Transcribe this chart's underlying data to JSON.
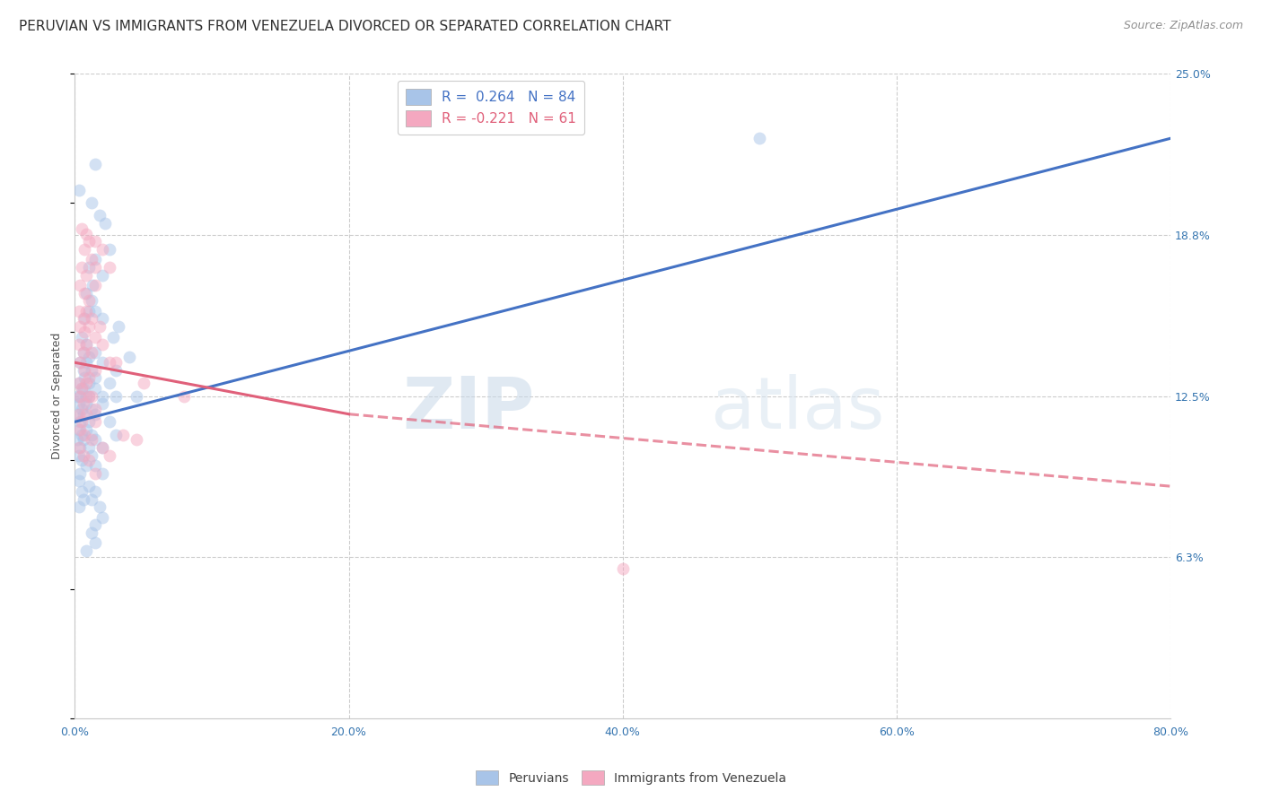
{
  "title": "PERUVIAN VS IMMIGRANTS FROM VENEZUELA DIVORCED OR SEPARATED CORRELATION CHART",
  "source": "Source: ZipAtlas.com",
  "ylabel_label": "Divorced or Separated",
  "blue_line_color": "#4472c4",
  "pink_line_color": "#e0607a",
  "blue_scatter_color": "#a8c4e8",
  "pink_scatter_color": "#f4a8c0",
  "background_color": "#ffffff",
  "grid_color": "#cccccc",
  "watermark_color": "#d5e4f0",
  "title_fontsize": 11,
  "axis_label_fontsize": 9,
  "tick_fontsize": 9,
  "legend_fontsize": 11,
  "source_fontsize": 9,
  "xlim": [
    0,
    80
  ],
  "ylim": [
    0,
    25
  ],
  "xtick_positions": [
    0,
    20,
    40,
    60,
    80
  ],
  "xtick_labels": [
    "0.0%",
    "20.0%",
    "40.0%",
    "60.0%",
    "80.0%"
  ],
  "ytick_positions": [
    6.25,
    12.5,
    18.75,
    25.0
  ],
  "ytick_labels": [
    "6.3%",
    "12.5%",
    "18.8%",
    "25.0%"
  ],
  "scatter_size": 100,
  "scatter_alpha": 0.5,
  "line_width": 2.2,
  "blue_line": [
    0,
    80,
    11.5,
    22.5
  ],
  "pink_line_solid": [
    0,
    20,
    13.8,
    11.8
  ],
  "pink_line_dashed": [
    20,
    80,
    11.8,
    9.0
  ],
  "blue_scatter": [
    [
      0.3,
      20.5
    ],
    [
      1.5,
      21.5
    ],
    [
      1.2,
      20.0
    ],
    [
      1.8,
      19.5
    ],
    [
      2.2,
      19.2
    ],
    [
      1.0,
      17.5
    ],
    [
      1.5,
      17.8
    ],
    [
      0.8,
      16.5
    ],
    [
      1.3,
      16.8
    ],
    [
      2.0,
      17.2
    ],
    [
      2.5,
      18.2
    ],
    [
      1.0,
      15.8
    ],
    [
      0.7,
      15.5
    ],
    [
      1.2,
      16.2
    ],
    [
      1.5,
      15.8
    ],
    [
      0.5,
      14.8
    ],
    [
      0.8,
      14.5
    ],
    [
      2.0,
      15.5
    ],
    [
      2.8,
      14.8
    ],
    [
      3.2,
      15.2
    ],
    [
      0.6,
      14.2
    ],
    [
      1.0,
      14.0
    ],
    [
      1.5,
      14.2
    ],
    [
      0.4,
      13.8
    ],
    [
      0.6,
      13.5
    ],
    [
      0.8,
      13.8
    ],
    [
      1.2,
      13.5
    ],
    [
      2.0,
      13.8
    ],
    [
      3.0,
      13.5
    ],
    [
      4.0,
      14.0
    ],
    [
      0.3,
      13.0
    ],
    [
      0.5,
      12.8
    ],
    [
      0.7,
      13.2
    ],
    [
      1.0,
      13.0
    ],
    [
      1.5,
      13.2
    ],
    [
      2.5,
      13.0
    ],
    [
      0.2,
      12.5
    ],
    [
      0.4,
      12.5
    ],
    [
      0.6,
      12.8
    ],
    [
      0.8,
      12.5
    ],
    [
      1.0,
      12.5
    ],
    [
      1.5,
      12.8
    ],
    [
      2.0,
      12.5
    ],
    [
      3.0,
      12.5
    ],
    [
      4.5,
      12.5
    ],
    [
      0.3,
      12.2
    ],
    [
      0.5,
      12.0
    ],
    [
      0.8,
      12.2
    ],
    [
      1.2,
      12.0
    ],
    [
      2.0,
      12.2
    ],
    [
      0.2,
      11.8
    ],
    [
      0.4,
      11.5
    ],
    [
      0.6,
      11.8
    ],
    [
      1.0,
      11.5
    ],
    [
      1.5,
      11.8
    ],
    [
      0.3,
      11.2
    ],
    [
      0.5,
      11.0
    ],
    [
      0.8,
      11.2
    ],
    [
      1.2,
      11.0
    ],
    [
      2.5,
      11.5
    ],
    [
      0.2,
      10.8
    ],
    [
      0.4,
      10.5
    ],
    [
      0.6,
      10.8
    ],
    [
      1.0,
      10.5
    ],
    [
      1.5,
      10.8
    ],
    [
      2.0,
      10.5
    ],
    [
      3.0,
      11.0
    ],
    [
      0.3,
      10.2
    ],
    [
      0.5,
      10.0
    ],
    [
      1.2,
      10.2
    ],
    [
      0.4,
      9.5
    ],
    [
      0.8,
      9.8
    ],
    [
      1.5,
      9.8
    ],
    [
      2.0,
      9.5
    ],
    [
      0.3,
      9.2
    ],
    [
      0.5,
      8.8
    ],
    [
      1.0,
      9.0
    ],
    [
      1.5,
      8.8
    ],
    [
      0.3,
      8.2
    ],
    [
      0.6,
      8.5
    ],
    [
      1.2,
      8.5
    ],
    [
      1.8,
      8.2
    ],
    [
      50.0,
      22.5
    ],
    [
      1.5,
      7.5
    ],
    [
      2.0,
      7.8
    ],
    [
      1.2,
      7.2
    ],
    [
      0.8,
      6.5
    ],
    [
      1.5,
      6.8
    ]
  ],
  "pink_scatter": [
    [
      0.5,
      19.0
    ],
    [
      0.8,
      18.8
    ],
    [
      1.0,
      18.5
    ],
    [
      1.5,
      18.5
    ],
    [
      0.7,
      18.2
    ],
    [
      1.2,
      17.8
    ],
    [
      0.5,
      17.5
    ],
    [
      0.8,
      17.2
    ],
    [
      1.5,
      17.5
    ],
    [
      2.0,
      18.2
    ],
    [
      0.4,
      16.8
    ],
    [
      0.7,
      16.5
    ],
    [
      1.0,
      16.2
    ],
    [
      1.5,
      16.8
    ],
    [
      2.5,
      17.5
    ],
    [
      0.3,
      15.8
    ],
    [
      0.6,
      15.5
    ],
    [
      0.8,
      15.8
    ],
    [
      1.2,
      15.5
    ],
    [
      1.8,
      15.2
    ],
    [
      0.4,
      15.2
    ],
    [
      0.7,
      15.0
    ],
    [
      1.0,
      15.2
    ],
    [
      1.5,
      14.8
    ],
    [
      2.0,
      14.5
    ],
    [
      0.3,
      14.5
    ],
    [
      0.6,
      14.2
    ],
    [
      0.8,
      14.5
    ],
    [
      1.2,
      14.2
    ],
    [
      2.5,
      13.8
    ],
    [
      0.4,
      13.8
    ],
    [
      0.7,
      13.5
    ],
    [
      1.0,
      13.2
    ],
    [
      1.5,
      13.5
    ],
    [
      3.0,
      13.8
    ],
    [
      0.3,
      13.0
    ],
    [
      0.5,
      12.8
    ],
    [
      0.8,
      13.0
    ],
    [
      1.2,
      12.5
    ],
    [
      5.0,
      13.0
    ],
    [
      0.4,
      12.5
    ],
    [
      0.6,
      12.2
    ],
    [
      1.0,
      12.5
    ],
    [
      1.5,
      12.0
    ],
    [
      8.0,
      12.5
    ],
    [
      0.3,
      11.8
    ],
    [
      0.5,
      11.5
    ],
    [
      0.8,
      11.8
    ],
    [
      1.5,
      11.5
    ],
    [
      3.5,
      11.0
    ],
    [
      0.4,
      11.2
    ],
    [
      0.7,
      11.0
    ],
    [
      1.2,
      10.8
    ],
    [
      2.0,
      10.5
    ],
    [
      4.5,
      10.8
    ],
    [
      0.3,
      10.5
    ],
    [
      0.6,
      10.2
    ],
    [
      1.0,
      10.0
    ],
    [
      2.5,
      10.2
    ],
    [
      1.5,
      9.5
    ],
    [
      40.0,
      5.8
    ]
  ]
}
